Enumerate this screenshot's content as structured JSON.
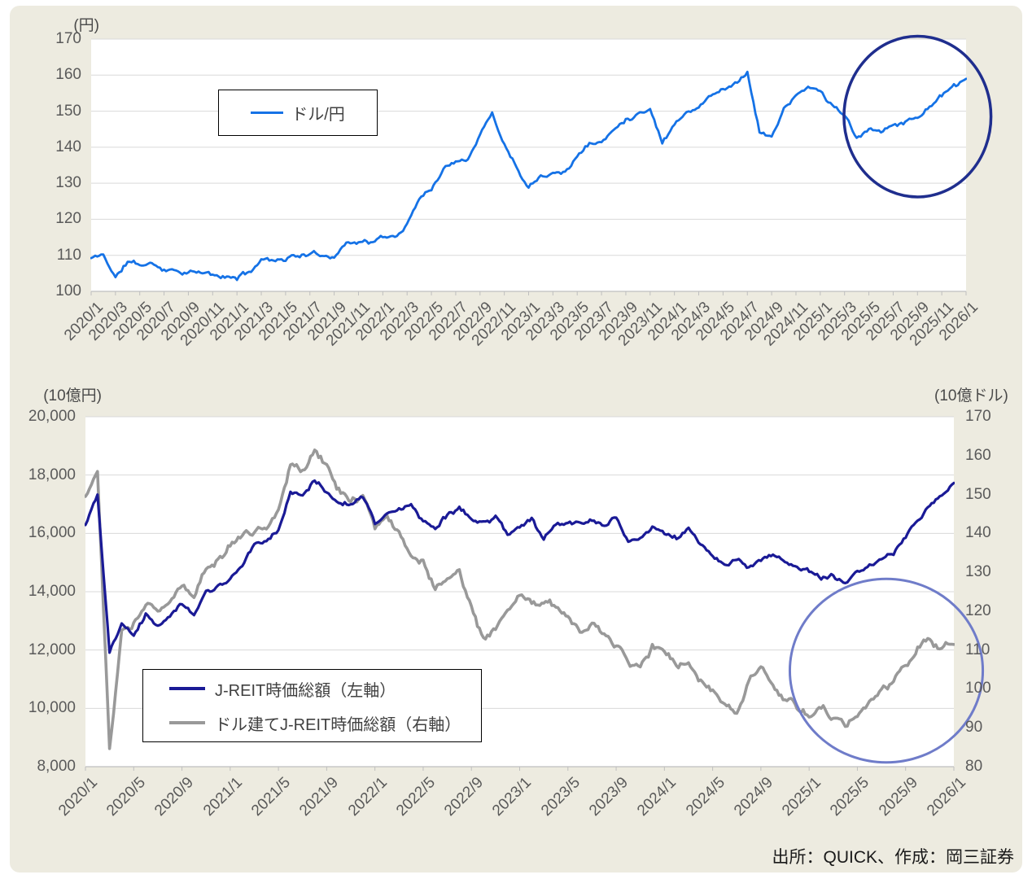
{
  "panel": {
    "page_background": "#FFFFFF",
    "background": "#EDEBE0"
  },
  "source_note": "出所：QUICK、作成：岡三証券",
  "chart_data": [
    {
      "type": "line",
      "title": "",
      "unit_label": "(円)",
      "grid": true,
      "x_axis": {
        "start": "2020/1",
        "end": "2026/1",
        "months_span": 72,
        "label_interval_months": 2,
        "tick_labels": [
          "2020/1",
          "2020/3",
          "2020/5",
          "2020/7",
          "2020/9",
          "2020/11",
          "2021/1",
          "2021/3",
          "2021/5",
          "2021/7",
          "2021/9",
          "2021/11",
          "2022/1",
          "2022/3",
          "2022/5",
          "2022/7",
          "2022/9",
          "2022/11",
          "2023/1",
          "2023/3",
          "2023/5",
          "2023/7",
          "2023/9",
          "2023/11",
          "2024/1",
          "2024/3",
          "2024/5",
          "2024/7",
          "2024/9",
          "2024/11",
          "2025/1",
          "2025/3",
          "2025/5",
          "2025/7",
          "2025/9",
          "2025/11",
          "2026/1"
        ]
      },
      "y_axis": {
        "min": 100,
        "max": 170,
        "step": 10,
        "tick_labels": [
          "100",
          "110",
          "120",
          "130",
          "140",
          "150",
          "160",
          "170"
        ]
      },
      "legend": {
        "position": "inner-upper-left",
        "entries": [
          {
            "label": "ドル/円",
            "color": "#1572E6"
          }
        ]
      },
      "series": [
        {
          "name": "ドル/円",
          "color": "#1572E6",
          "axis": "left",
          "x_start": "2020/1",
          "x_interval": "monthly",
          "values": [
            109.2,
            110.2,
            103.8,
            108.2,
            107.3,
            107.6,
            106.3,
            106.0,
            105.4,
            105.2,
            104.4,
            103.7,
            103.8,
            105.4,
            108.8,
            109.0,
            109.2,
            110.1,
            110.3,
            109.9,
            110.2,
            113.5,
            114.0,
            113.8,
            114.8,
            115.0,
            118.7,
            126.1,
            128.8,
            134.0,
            136.7,
            137.3,
            143.8,
            149.5,
            141.0,
            134.9,
            129.2,
            132.7,
            133.3,
            133.5,
            137.4,
            141.3,
            141.2,
            144.8,
            147.7,
            149.6,
            151.0,
            141.5,
            146.6,
            150.2,
            150.8,
            154.8,
            155.9,
            158.0,
            161.0,
            144.5,
            142.5,
            150.8,
            154.0,
            156.5,
            155.5,
            151.5,
            149.0,
            142.0,
            144.5,
            144.5,
            146.5,
            147.2,
            148.0,
            151.5,
            154.5,
            156.5,
            158.3
          ]
        }
      ],
      "annotations": [
        {
          "shape": "ellipse",
          "stroke": "#1F2E8E",
          "stroke_width": 3.5,
          "center_month_index": 68.0,
          "center_value": 148.5,
          "radius_months": 6.05,
          "radius_value": 22.3
        }
      ]
    },
    {
      "type": "line",
      "title": "",
      "unit_label_left": "(10億円)",
      "unit_label_right": "(10億ドル)",
      "grid": true,
      "x_axis": {
        "start": "2020/1",
        "end": "2026/1",
        "months_span": 72,
        "label_interval_months": 4,
        "tick_labels": [
          "2020/1",
          "2020/5",
          "2020/9",
          "2021/1",
          "2021/5",
          "2021/9",
          "2022/1",
          "2022/5",
          "2022/9",
          "2023/1",
          "2023/5",
          "2023/9",
          "2024/1",
          "2024/5",
          "2024/9",
          "2025/1",
          "2025/5",
          "2025/9",
          "2026/1"
        ]
      },
      "y_axis_left": {
        "min": 8000,
        "max": 20000,
        "step": 2000,
        "tick_labels": [
          "8,000",
          "10,000",
          "12,000",
          "14,000",
          "16,000",
          "18,000",
          "20,000"
        ]
      },
      "y_axis_right": {
        "min": 80,
        "max": 170,
        "step": 10,
        "tick_labels": [
          "80",
          "90",
          "100",
          "110",
          "120",
          "130",
          "140",
          "150",
          "160",
          "170"
        ]
      },
      "legend": {
        "position": "inner-lower-left",
        "entries": [
          {
            "label": "J-REIT時価総額（左軸）",
            "color": "#1A1A96"
          },
          {
            "label": "ドル建てJ-REIT時価総額（右軸）",
            "color": "#999999"
          }
        ]
      },
      "series": [
        {
          "name": "J-REIT時価総額（左軸）",
          "color": "#1A1A96",
          "axis": "left",
          "x_start": "2020/1",
          "x_interval": "monthly",
          "values": [
            16300,
            17350,
            11950,
            12900,
            12500,
            13300,
            12850,
            13200,
            13600,
            13150,
            13900,
            14150,
            14400,
            14900,
            15600,
            15650,
            16100,
            17400,
            17300,
            17800,
            17500,
            17100,
            17000,
            17200,
            16350,
            16700,
            16900,
            17000,
            16500,
            16200,
            16650,
            16900,
            16500,
            16300,
            16600,
            15900,
            16300,
            16500,
            15800,
            16200,
            16400,
            16350,
            16500,
            16300,
            16600,
            15700,
            15800,
            16200,
            16000,
            15800,
            16100,
            15600,
            15250,
            14950,
            15200,
            14800,
            15000,
            15300,
            15000,
            14850,
            14700,
            14450,
            14550,
            14250,
            14650,
            14850,
            15050,
            15350,
            15850,
            16400,
            16950,
            17250,
            17700
          ]
        },
        {
          "name": "ドル建てJ-REIT時価総額（右軸）",
          "color": "#999999",
          "axis": "right",
          "x_start": "2020/1",
          "x_interval": "monthly",
          "values": [
            149,
            156,
            83,
            114,
            117,
            121,
            120,
            123,
            127,
            124,
            131,
            134,
            137,
            140,
            141,
            142,
            146,
            158,
            156,
            161,
            158,
            152,
            148,
            150,
            141,
            145,
            141,
            134,
            133,
            126,
            128,
            130,
            121,
            113,
            115,
            120,
            125,
            123,
            122,
            121,
            119,
            115,
            117,
            113,
            111,
            107,
            105,
            111,
            109,
            106,
            107,
            102,
            99,
            96,
            94,
            101,
            106,
            100,
            97,
            95,
            93,
            95,
            92,
            90,
            93,
            97,
            100,
            102,
            105,
            110,
            112,
            110,
            112
          ]
        }
      ],
      "annotations": [
        {
          "shape": "ellipse",
          "stroke": "#6F7CC9",
          "stroke_width": 3,
          "center_month_index": 66.4,
          "center_value_right": 104.7,
          "radius_months": 8.0,
          "radius_value_right": 23.6
        }
      ]
    }
  ]
}
